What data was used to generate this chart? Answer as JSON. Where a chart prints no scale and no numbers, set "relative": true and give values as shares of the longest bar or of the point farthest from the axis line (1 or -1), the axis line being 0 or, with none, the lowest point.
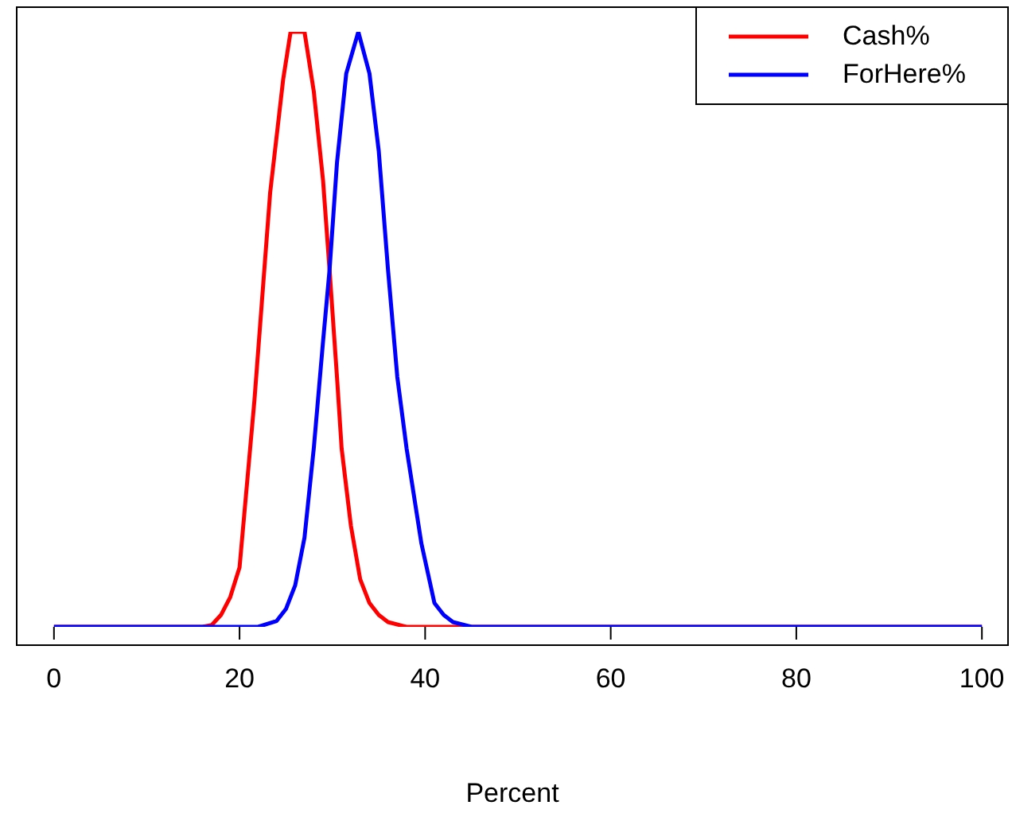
{
  "chart_data": {
    "type": "line",
    "xlabel": "Percent",
    "relative": true,
    "xlim": [
      -4.1,
      102.9
    ],
    "xticks": [
      0,
      20,
      40,
      60,
      80,
      100
    ],
    "legend": "top right",
    "grid": false,
    "marker": "none",
    "line_style": "solid",
    "series": [
      {
        "name": "Cash%",
        "color": "#ff0000",
        "x": [
          0,
          16,
          17,
          18,
          19,
          20,
          21.6,
          23.3,
          24.7,
          25.5,
          27,
          28,
          29,
          29.7,
          30.5,
          31,
          32,
          33,
          34,
          35,
          36,
          38,
          40,
          100
        ],
        "values": [
          0,
          0,
          0.003,
          0.02,
          0.05,
          0.1,
          0.38,
          0.73,
          0.92,
          1,
          1,
          0.9,
          0.75,
          0.6,
          0.42,
          0.3,
          0.17,
          0.08,
          0.04,
          0.02,
          0.008,
          0,
          0,
          0
        ]
      },
      {
        "name": "ForHere%",
        "color": "#0000ff",
        "x": [
          0,
          22,
          24,
          25,
          26,
          27,
          28,
          29,
          29.7,
          30.5,
          31.5,
          32.8,
          34,
          35,
          36,
          37,
          38,
          39.6,
          41,
          42,
          43,
          45,
          100
        ],
        "values": [
          0,
          0,
          0.01,
          0.03,
          0.07,
          0.15,
          0.3,
          0.48,
          0.6,
          0.78,
          0.93,
          1,
          0.93,
          0.8,
          0.6,
          0.42,
          0.3,
          0.14,
          0.04,
          0.02,
          0.008,
          0,
          0
        ]
      }
    ]
  }
}
